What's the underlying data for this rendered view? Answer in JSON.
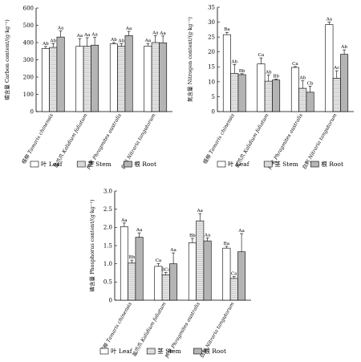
{
  "legend_labels": [
    "叶 Leaf",
    "茎 Stem",
    "根 Root"
  ],
  "chart_data": [
    {
      "type": "bar",
      "ylabel": "碳含量 Carbon content/(g·kg⁻¹)",
      "ylim": [
        0,
        600
      ],
      "yticks": [
        "0",
        "100",
        "200",
        "300",
        "400",
        "500",
        "600"
      ],
      "categories": [
        {
          "cn": "柽柳",
          "latin": "Tamarix chinensis"
        },
        {
          "cn": "盐爪爪",
          "latin": "Kalidium foliatum"
        },
        {
          "cn": "芦苇",
          "latin": "Phragmites australis"
        },
        {
          "cn": "白刺",
          "latin": "Nitraria tangutorum"
        }
      ],
      "series": [
        {
          "name": "叶 Leaf",
          "values": [
            365,
            378,
            392,
            380
          ],
          "errors": [
            12,
            45,
            8,
            15
          ],
          "labels": [
            "Ab",
            "Aa",
            "Ab",
            "Aa"
          ]
        },
        {
          "name": "茎 Stem",
          "values": [
            372,
            378,
            378,
            400
          ],
          "errors": [
            22,
            50,
            15,
            40
          ],
          "labels": [
            "Ab",
            "Aa",
            "Ab",
            "Aa"
          ]
        },
        {
          "name": "根 Root",
          "values": [
            432,
            385,
            440,
            398
          ],
          "errors": [
            35,
            45,
            25,
            40
          ],
          "labels": [
            "Aa",
            "Aa",
            "Aa",
            "Aa"
          ]
        }
      ]
    },
    {
      "type": "bar",
      "ylabel": "氮含量 Nitrogen content/(g·kg⁻¹)",
      "ylim": [
        0,
        35
      ],
      "yticks": [
        "0",
        "5",
        "10",
        "15",
        "20",
        "25",
        "30",
        "35"
      ],
      "categories": [
        {
          "cn": "柽柳",
          "latin": "Tamarix chinensis"
        },
        {
          "cn": "盐爪爪",
          "latin": "Kalidium foliatum"
        },
        {
          "cn": "芦苇",
          "latin": "Phragmites australis"
        },
        {
          "cn": "白刺",
          "latin": "Nitraria tangutorum"
        }
      ],
      "series": [
        {
          "name": "叶 Leaf",
          "values": [
            25.8,
            16.0,
            14.8,
            29.2
          ],
          "errors": [
            0.8,
            2.0,
            0.3,
            0.8
          ],
          "labels": [
            "Ba",
            "Ca",
            "Ca",
            "Aa"
          ]
        },
        {
          "name": "茎 Stem",
          "values": [
            12.8,
            10.2,
            7.8,
            11.2
          ],
          "errors": [
            3.0,
            2.0,
            2.5,
            2.5
          ],
          "labels": [
            "Ab",
            "Ab",
            "Ab",
            "Ac"
          ]
        },
        {
          "name": "根 Root",
          "values": [
            12.4,
            10.6,
            6.5,
            19.2
          ],
          "errors": [
            0.3,
            0.3,
            2.0,
            1.5
          ],
          "labels": [
            "Bb",
            "Bb",
            "Cb",
            "Ab"
          ]
        }
      ]
    },
    {
      "type": "bar",
      "ylabel": "磷含量 Phosphorus content/(g·kg⁻¹)",
      "ylim": [
        0,
        3.0
      ],
      "yticks": [
        "0",
        "0.5",
        "1.0",
        "1.5",
        "2.0",
        "2.5",
        "3.0"
      ],
      "categories": [
        {
          "cn": "柽柳",
          "latin": "Tamarix chinensis"
        },
        {
          "cn": "盐爪爪",
          "latin": "Kalidium foliatum"
        },
        {
          "cn": "芦苇",
          "latin": "Phragmites australis"
        },
        {
          "cn": "白刺",
          "latin": "Nitraria tangutorum"
        }
      ],
      "series": [
        {
          "name": "叶 Leaf",
          "values": [
            2.02,
            0.93,
            1.58,
            1.43
          ],
          "errors": [
            0.1,
            0.08,
            0.12,
            0.05
          ],
          "labels": [
            "Aa",
            "Ca",
            "Bb",
            "Ba"
          ]
        },
        {
          "name": "茎 Stem",
          "values": [
            1.02,
            0.7,
            2.18,
            0.6
          ],
          "errors": [
            0.08,
            0.06,
            0.2,
            0.05
          ],
          "labels": [
            "Bb",
            "BCa",
            "Aa",
            "Ca"
          ]
        },
        {
          "name": "根 Root",
          "values": [
            1.73,
            1.0,
            1.63,
            1.33
          ],
          "errors": [
            0.12,
            0.3,
            0.08,
            0.5
          ],
          "labels": [
            "Aa",
            "Aa",
            "Aa",
            "Aa"
          ]
        }
      ]
    }
  ]
}
